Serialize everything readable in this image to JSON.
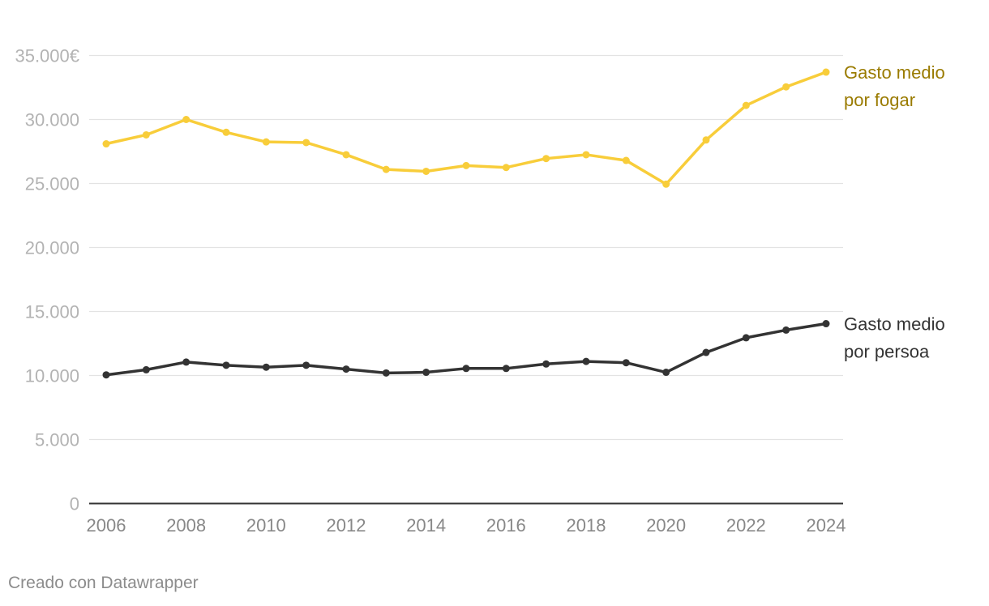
{
  "chart_data": {
    "type": "line",
    "title": "",
    "xlabel": "",
    "ylabel": "",
    "x": [
      2006,
      2007,
      2008,
      2009,
      2010,
      2011,
      2012,
      2013,
      2014,
      2015,
      2016,
      2017,
      2018,
      2019,
      2020,
      2021,
      2022,
      2023,
      2024
    ],
    "xticks": [
      "2006",
      "2008",
      "2010",
      "2012",
      "2014",
      "2016",
      "2018",
      "2020",
      "2022",
      "2024"
    ],
    "yticks": [
      {
        "value": 35000,
        "label": "35.000€"
      },
      {
        "value": 30000,
        "label": "30.000"
      },
      {
        "value": 25000,
        "label": "25.000"
      },
      {
        "value": 20000,
        "label": "20.000"
      },
      {
        "value": 15000,
        "label": "15.000"
      },
      {
        "value": 10000,
        "label": "10.000"
      },
      {
        "value": 5000,
        "label": "5.000"
      },
      {
        "value": 0,
        "label": "0"
      }
    ],
    "ylim": [
      0,
      35000
    ],
    "grid": true,
    "series": [
      {
        "name": "Gasto medio por fogar",
        "label_lines": [
          "Gasto medio",
          "por fogar"
        ],
        "color": "#f8cd3a",
        "label_color": "#9a7b00",
        "values": [
          28100,
          28800,
          30000,
          29000,
          28250,
          28200,
          27250,
          26100,
          25950,
          26400,
          26250,
          26950,
          27250,
          26800,
          24950,
          28400,
          31100,
          32550,
          33700
        ]
      },
      {
        "name": "Gasto medio por persoa",
        "label_lines": [
          "Gasto medio",
          "por persoa"
        ],
        "color": "#333333",
        "label_color": "#333333",
        "values": [
          10050,
          10450,
          11050,
          10800,
          10650,
          10800,
          10500,
          10200,
          10250,
          10550,
          10550,
          10900,
          11100,
          11000,
          10250,
          11800,
          12950,
          13550,
          14050
        ]
      }
    ]
  },
  "footer": {
    "credit": "Creado con Datawrapper"
  }
}
